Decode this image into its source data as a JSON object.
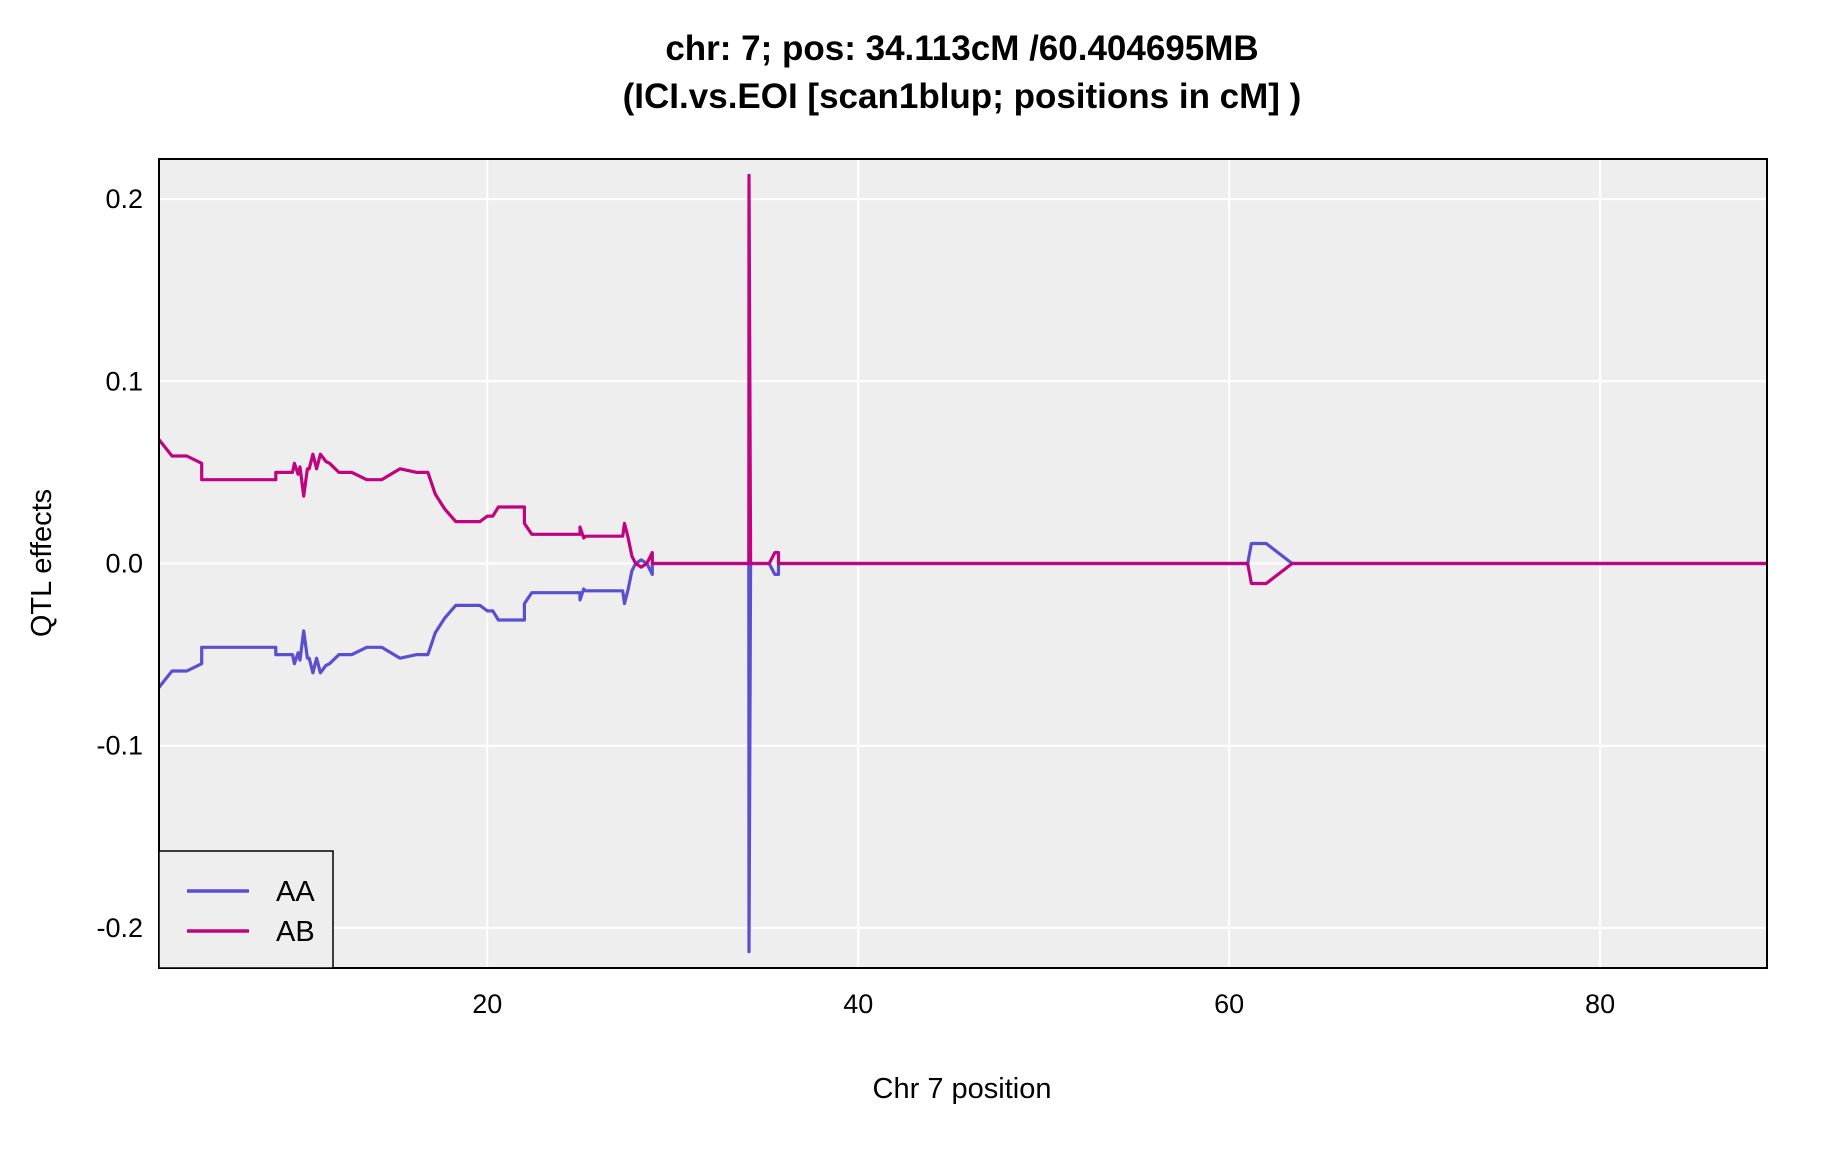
{
  "chart_data": {
    "type": "line",
    "title": "chr: 7; pos: 34.113cM /60.404695MB",
    "subtitle": "(ICI.vs.EOI [scan1blup; positions in cM] )",
    "xlabel": "Chr 7 position",
    "ylabel": "QTL effects",
    "xlim": [
      2.3,
      89.0
    ],
    "ylim": [
      -0.222,
      0.222
    ],
    "xticks": [
      20,
      40,
      60,
      80
    ],
    "xtick_labels": [
      "20",
      "40",
      "60",
      "80"
    ],
    "yticks": [
      -0.2,
      -0.1,
      0.0,
      0.1,
      0.2
    ],
    "ytick_labels": [
      "-0.2",
      "-0.1",
      "0.0",
      "0.1",
      "0.2"
    ],
    "grid": true,
    "background": "#eeeeee",
    "legend_position": "bottom-left",
    "series": [
      {
        "name": "AA",
        "color": "#5a4fcf",
        "x": [
          2.3,
          3.0,
          3.8,
          4.6,
          4.6,
          5.6,
          7.2,
          8.6,
          8.6,
          9.5,
          9.6,
          9.8,
          9.9,
          10.1,
          10.3,
          10.4,
          10.6,
          10.8,
          11.0,
          11.3,
          11.5,
          11.5,
          12.0,
          12.4,
          12.7,
          13.5,
          14.0,
          14.3,
          15.3,
          16.2,
          16.8,
          17.2,
          17.7,
          18.3,
          19.0,
          19.2,
          19.6,
          20.0,
          20.3,
          20.6,
          21.0,
          21.4,
          22.0,
          22.0,
          22.4,
          22.6,
          25.0,
          25.0,
          25.2,
          25.3,
          27.3,
          27.4,
          27.6,
          27.8,
          28.0,
          28.3,
          28.6,
          28.9,
          28.9,
          29.1,
          29.8,
          30.6,
          33.9,
          34.1,
          34.113,
          34.2,
          34.3,
          34.6,
          35.0,
          35.2,
          35.5,
          35.7,
          35.7,
          36.0,
          61.0,
          61.2,
          61.4,
          62.0,
          63.4,
          89.0
        ],
        "y": [
          -0.068,
          -0.059,
          -0.059,
          -0.055,
          -0.046,
          -0.046,
          -0.046,
          -0.046,
          -0.05,
          -0.05,
          -0.055,
          -0.049,
          -0.053,
          -0.037,
          -0.052,
          -0.052,
          -0.06,
          -0.052,
          -0.06,
          -0.056,
          -0.055,
          -0.055,
          -0.05,
          -0.05,
          -0.05,
          -0.046,
          -0.046,
          -0.046,
          -0.052,
          -0.05,
          -0.05,
          -0.038,
          -0.03,
          -0.023,
          -0.023,
          -0.023,
          -0.023,
          -0.026,
          -0.026,
          -0.031,
          -0.031,
          -0.031,
          -0.031,
          -0.022,
          -0.016,
          -0.016,
          -0.016,
          -0.02,
          -0.014,
          -0.015,
          -0.015,
          -0.022,
          -0.014,
          -0.004,
          0.0,
          0.002,
          0.0,
          -0.006,
          0.0,
          0.0,
          0.0,
          0.0,
          0.0,
          0.0,
          -0.213,
          0.0,
          0.0,
          0.0,
          0.0,
          0.0,
          -0.006,
          -0.006,
          0.0,
          0.0,
          0.0,
          0.011,
          0.011,
          0.011,
          0.0,
          0.0
        ]
      },
      {
        "name": "AB",
        "color": "#c0037e",
        "x": [
          2.3,
          3.0,
          3.8,
          4.6,
          4.6,
          5.6,
          7.2,
          8.6,
          8.6,
          9.5,
          9.6,
          9.8,
          9.9,
          10.1,
          10.3,
          10.4,
          10.6,
          10.8,
          11.0,
          11.3,
          11.5,
          11.5,
          12.0,
          12.4,
          12.7,
          13.5,
          14.0,
          14.3,
          15.3,
          16.2,
          16.8,
          17.2,
          17.7,
          18.3,
          19.0,
          19.2,
          19.6,
          20.0,
          20.3,
          20.6,
          21.0,
          21.4,
          22.0,
          22.0,
          22.4,
          22.6,
          25.0,
          25.0,
          25.2,
          25.3,
          27.3,
          27.4,
          27.6,
          27.8,
          28.0,
          28.3,
          28.6,
          28.9,
          28.9,
          29.1,
          29.8,
          30.6,
          33.9,
          34.1,
          34.113,
          34.2,
          34.3,
          34.6,
          35.0,
          35.2,
          35.5,
          35.7,
          35.7,
          36.0,
          61.0,
          61.2,
          61.4,
          62.0,
          63.4,
          89.0
        ],
        "y": [
          0.068,
          0.059,
          0.059,
          0.055,
          0.046,
          0.046,
          0.046,
          0.046,
          0.05,
          0.05,
          0.055,
          0.049,
          0.053,
          0.037,
          0.052,
          0.052,
          0.06,
          0.052,
          0.06,
          0.056,
          0.055,
          0.055,
          0.05,
          0.05,
          0.05,
          0.046,
          0.046,
          0.046,
          0.052,
          0.05,
          0.05,
          0.038,
          0.03,
          0.023,
          0.023,
          0.023,
          0.023,
          0.026,
          0.026,
          0.031,
          0.031,
          0.031,
          0.031,
          0.022,
          0.016,
          0.016,
          0.016,
          0.02,
          0.014,
          0.015,
          0.015,
          0.022,
          0.014,
          0.004,
          0.0,
          -0.002,
          0.0,
          0.006,
          0.0,
          0.0,
          0.0,
          0.0,
          0.0,
          0.0,
          0.213,
          0.0,
          0.0,
          0.0,
          0.0,
          0.0,
          0.006,
          0.006,
          0.0,
          0.0,
          0.0,
          -0.011,
          -0.011,
          -0.011,
          0.0,
          0.0
        ]
      }
    ]
  }
}
